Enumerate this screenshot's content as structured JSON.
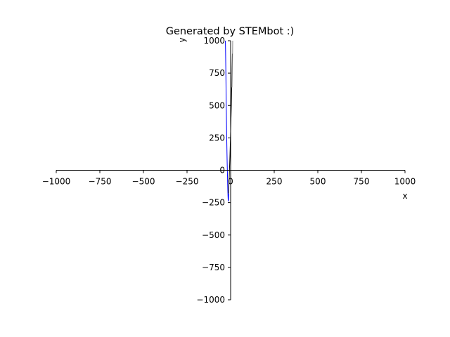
{
  "chart_data": {
    "type": "line",
    "title": "Generated by STEMbot :)",
    "xlabel": "x",
    "ylabel": "y",
    "xlim": [
      -1000,
      1000
    ],
    "ylim": [
      -1000,
      1000
    ],
    "xticks": [
      -1000,
      -750,
      -500,
      -250,
      0,
      250,
      500,
      750,
      1000
    ],
    "yticks": [
      -1000,
      -750,
      -500,
      -250,
      0,
      250,
      500,
      750,
      1000
    ],
    "xtick_labels": [
      "−1000",
      "−750",
      "−500",
      "−250",
      "0",
      "250",
      "500",
      "750",
      "1000"
    ],
    "ytick_labels": [
      "−1000",
      "−750",
      "−500",
      "−250",
      "0",
      "250",
      "500",
      "750",
      "1000"
    ],
    "grid": false,
    "spines": "centered",
    "series": [
      {
        "color": "#0000ff",
        "x": [
          -30,
          -29,
          -28,
          -27,
          -26,
          -25,
          -24,
          -23,
          -22,
          -21,
          -20,
          -19,
          -18,
          -17,
          -16,
          -15,
          -14,
          -13,
          -12,
          -11
        ],
        "y": [
          1000,
          920,
          820,
          720,
          610,
          500,
          400,
          310,
          220,
          140,
          70,
          10,
          -50,
          -110,
          -160,
          -200,
          -230,
          -240,
          -220,
          -180
        ]
      },
      {
        "color": "#000000",
        "x": [
          -12,
          -10,
          -8,
          -6,
          -4,
          -2,
          0,
          2,
          4,
          6,
          8,
          10
        ],
        "y": [
          -180,
          -120,
          -50,
          30,
          110,
          200,
          300,
          400,
          500,
          620,
          750,
          900
        ]
      },
      {
        "color": "#888888",
        "x": [
          8,
          9,
          10,
          11,
          12
        ],
        "y": [
          640,
          700,
          780,
          880,
          1000
        ]
      }
    ]
  }
}
